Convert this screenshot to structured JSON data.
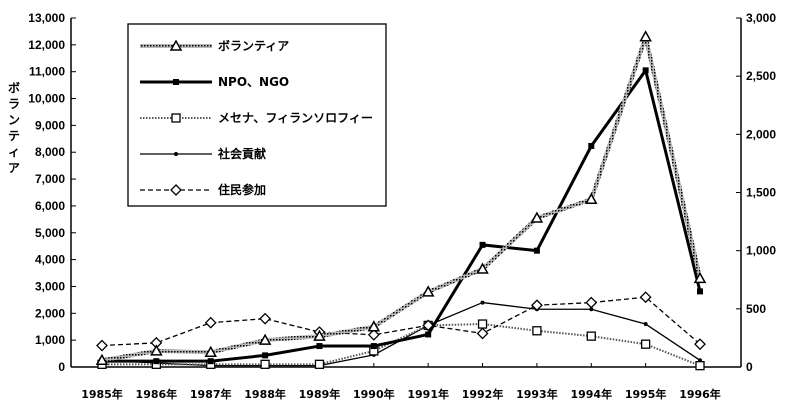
{
  "chart_data": {
    "type": "line",
    "ylabel": "ボランティア",
    "ylim_left": [
      0,
      13000
    ],
    "ylim_right": [
      0,
      3000
    ],
    "left_ticks": [
      "0",
      "1,000",
      "2,000",
      "3,000",
      "4,000",
      "5,000",
      "6,000",
      "7,000",
      "8,000",
      "9,000",
      "10,000",
      "11,000",
      "12,000",
      "13,000"
    ],
    "right_ticks": [
      "0",
      "500",
      "1,000",
      "1,500",
      "2,000",
      "2,500",
      "3,000"
    ],
    "categories": [
      "1985年",
      "1986年",
      "1987年",
      "1988年",
      "1989年",
      "1990年",
      "1991年",
      "1992年",
      "1993年",
      "1994年",
      "1995年",
      "1996年"
    ],
    "legend_position": "top-left",
    "series": [
      {
        "name": "ボランティア",
        "axis": "left",
        "color": "#888888",
        "marker": "triangle",
        "style": "hatched",
        "values": [
          250,
          600,
          550,
          1000,
          1150,
          1500,
          2800,
          3650,
          5550,
          6250,
          12300,
          3300
        ]
      },
      {
        "name": "NPO、NGO",
        "axis": "right",
        "color": "#000000",
        "marker": "square-filled",
        "style": "thick",
        "values": [
          50,
          50,
          50,
          100,
          180,
          180,
          280,
          1050,
          1000,
          1900,
          2550,
          650
        ]
      },
      {
        "name": "メセナ、フィランソロフィー",
        "axis": "left",
        "color": "#555555",
        "marker": "square-open",
        "style": "dotted",
        "values": [
          100,
          100,
          100,
          100,
          100,
          600,
          1550,
          1600,
          1350,
          1150,
          850,
          50
        ]
      },
      {
        "name": "社会貢献",
        "axis": "left",
        "color": "#000000",
        "marker": "dot",
        "style": "thin",
        "values": [
          250,
          150,
          50,
          50,
          50,
          450,
          1550,
          2400,
          2150,
          2150,
          1600,
          250
        ]
      },
      {
        "name": "住民参加",
        "axis": "left",
        "color": "#000000",
        "marker": "diamond-open",
        "style": "dashed",
        "values": [
          800,
          900,
          1650,
          1800,
          1300,
          1200,
          1550,
          1250,
          2300,
          2400,
          2600,
          850
        ]
      }
    ]
  }
}
